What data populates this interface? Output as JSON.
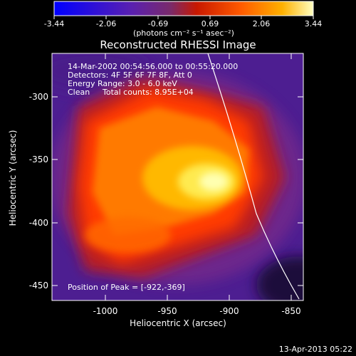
{
  "colorbar": {
    "ticks": [
      "-3.44",
      "-2.06",
      "-0.69",
      "0.69",
      "2.06",
      "3.44"
    ],
    "unit_label": "(photons cm⁻² s⁻¹ asec⁻²)"
  },
  "title": "Reconstructed RHESSI Image",
  "info": {
    "time_range": "14-Mar-2002 00:54:56.000 to 00:55:20.000",
    "detectors": "Detectors: 4F 5F 6F 7F 8F, Att 0",
    "energy": "Energy Range: 3.0 - 6.0 keV",
    "clean_label": "Clean",
    "total_counts": "Total counts: 8.95E+04",
    "peak": "Position of Peak = [-922,-369]"
  },
  "axes": {
    "xlabel": "Heliocentric X (arcsec)",
    "ylabel": "Heliocentric Y (arcsec)",
    "xticks": [
      "-1000",
      "-950",
      "-900",
      "-850"
    ],
    "yticks": [
      "-300",
      "-350",
      "-400",
      "-450"
    ]
  },
  "footer_date": "13-Apr-2013 05:22",
  "colors": {
    "background": "#000000",
    "colormap": [
      "#0000ff",
      "#4b1fb0",
      "#6a2a8a",
      "#ff2a00",
      "#ff8c00",
      "#ffff80",
      "#ffffff"
    ]
  }
}
